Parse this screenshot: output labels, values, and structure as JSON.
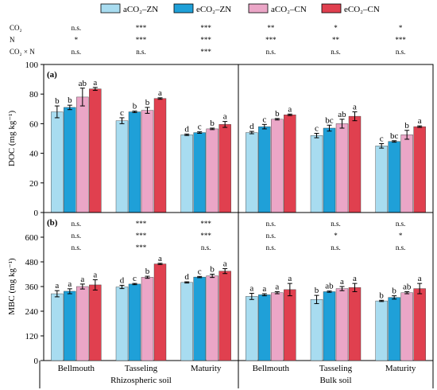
{
  "legend": [
    {
      "label": "aCO₂–ZN",
      "color": "#a8dcf0"
    },
    {
      "label": "eCO₂–ZN",
      "color": "#1fa0d8"
    },
    {
      "label": "aCO₂–CN",
      "color": "#eba6c7"
    },
    {
      "label": "eCO₂–CN",
      "color": "#e0404f"
    }
  ],
  "sig_row_labels": [
    "CO₂",
    "N",
    "CO₂ × N"
  ],
  "top_sig": [
    [
      "n.s.",
      "***",
      "***",
      "**",
      "*",
      "*"
    ],
    [
      "*",
      "***",
      "***",
      "***",
      "**",
      "***"
    ],
    [
      "n.s.",
      "n.s.",
      "***",
      "n.s.",
      "n.s.",
      "n.s."
    ]
  ],
  "mid_sig": [
    [
      "n.s.",
      "***",
      "***",
      "n.s.",
      "n.s.",
      "n.s."
    ],
    [
      "n.s.",
      "***",
      "***",
      "n.s.",
      "*",
      "*"
    ],
    [
      "n.s.",
      "***",
      "n.s.",
      "n.s.",
      "n.s.",
      "n.s."
    ]
  ],
  "x_groups": [
    "Bellmouth",
    "Tasseling",
    "Maturity",
    "Bellmouth",
    "Tasseling",
    "Maturity"
  ],
  "x_supergroups": [
    "Rhizospheric soil",
    "Bulk soil"
  ],
  "chart_data": [
    {
      "type": "bar",
      "panel_label": "(a)",
      "ylabel": "DOC (mg kg⁻¹)",
      "ylim": [
        0,
        100
      ],
      "yticks": [
        0,
        20,
        40,
        60,
        80,
        100
      ],
      "categories": [
        "Bellmouth",
        "Tasseling",
        "Maturity",
        "Bellmouth",
        "Tasseling",
        "Maturity"
      ],
      "supercategories": [
        "Rhizospheric soil",
        "Bulk soil"
      ],
      "series": [
        {
          "name": "aCO₂–ZN",
          "values": [
            68,
            62,
            52.5,
            54,
            52,
            45
          ],
          "errors": [
            4,
            2,
            0.5,
            0.8,
            1.5,
            1.5
          ],
          "letters": [
            "b",
            "c",
            "d",
            "d",
            "c",
            "c"
          ]
        },
        {
          "name": "eCO₂–ZN",
          "values": [
            71,
            68,
            54,
            58,
            57,
            48
          ],
          "errors": [
            1.5,
            0.5,
            0.5,
            1.5,
            2,
            0.5
          ],
          "letters": [
            "b",
            "b",
            "c",
            "c",
            "bc",
            "bc"
          ]
        },
        {
          "name": "aCO₂–CN",
          "values": [
            78,
            69,
            56.5,
            63,
            60,
            52.5
          ],
          "errors": [
            6,
            2,
            0.5,
            0.5,
            3,
            3
          ],
          "letters": [
            "ab",
            "b",
            "b",
            "b",
            "ab",
            "b"
          ]
        },
        {
          "name": "eCO₂–CN",
          "values": [
            83.5,
            77,
            59.5,
            66,
            65,
            58
          ],
          "errors": [
            1,
            0.5,
            2,
            0.5,
            3,
            0.5
          ],
          "letters": [
            "a",
            "a",
            "a",
            "a",
            "a",
            "a"
          ]
        }
      ]
    },
    {
      "type": "bar",
      "panel_label": "(b)",
      "ylabel": "MBC (mg kg⁻¹)",
      "ylim": [
        0,
        720
      ],
      "yticks": [
        0,
        120,
        240,
        360,
        480,
        600
      ],
      "categories": [
        "Bellmouth",
        "Tasseling",
        "Maturity",
        "Bellmouth",
        "Tasseling",
        "Maturity"
      ],
      "supercategories": [
        "Rhizospheric soil",
        "Bulk soil"
      ],
      "series": [
        {
          "name": "aCO₂–ZN",
          "values": [
            325,
            358,
            380,
            312,
            297,
            290
          ],
          "errors": [
            15,
            8,
            3,
            15,
            20,
            3
          ],
          "letters": [
            "a",
            "d",
            "d",
            "a",
            "b",
            "b"
          ]
        },
        {
          "name": "eCO₂–ZN",
          "values": [
            337,
            372,
            406,
            320,
            335,
            307
          ],
          "errors": [
            12,
            3,
            3,
            5,
            3,
            8
          ],
          "letters": [
            "a",
            "c",
            "c",
            "a",
            "ab",
            "b"
          ]
        },
        {
          "name": "aCO₂–CN",
          "values": [
            360,
            405,
            412,
            330,
            350,
            330
          ],
          "errors": [
            12,
            5,
            8,
            5,
            10,
            5
          ],
          "letters": [
            "a",
            "b",
            "b",
            "a",
            "a",
            "ab"
          ]
        },
        {
          "name": "eCO₂–CN",
          "values": [
            368,
            470,
            435,
            345,
            355,
            350
          ],
          "errors": [
            25,
            3,
            12,
            30,
            20,
            25
          ],
          "letters": [
            "a",
            "a",
            "a",
            "a",
            "a",
            "a"
          ]
        }
      ]
    }
  ]
}
